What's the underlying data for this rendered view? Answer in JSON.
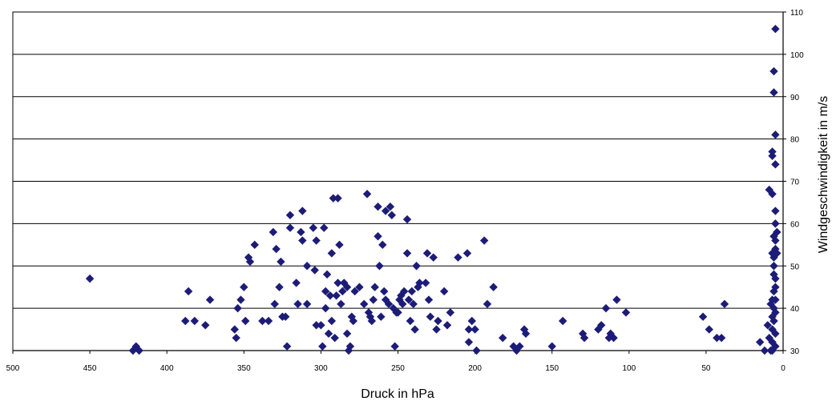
{
  "chart_data": {
    "type": "scatter",
    "title": "",
    "xlabel": "Druck in hPa",
    "ylabel": "Windgeschwindigkeit in m/s",
    "xlim": [
      500,
      0
    ],
    "ylim": [
      30,
      110
    ],
    "x_reversed": true,
    "x_ticks": [
      500,
      450,
      400,
      350,
      300,
      250,
      200,
      150,
      100,
      50,
      0
    ],
    "y_ticks": [
      30,
      40,
      50,
      60,
      70,
      80,
      90,
      100,
      110
    ],
    "grid": "horizontal",
    "legend": "none",
    "marker": "diamond",
    "marker_color": "#1c1c78",
    "points": [
      [
        450,
        47
      ],
      [
        422,
        30
      ],
      [
        420,
        31
      ],
      [
        418,
        30
      ],
      [
        388,
        37
      ],
      [
        386,
        44
      ],
      [
        382,
        37
      ],
      [
        375,
        36
      ],
      [
        372,
        42
      ],
      [
        356,
        35
      ],
      [
        355,
        33
      ],
      [
        354,
        40
      ],
      [
        352,
        42
      ],
      [
        350,
        45
      ],
      [
        349,
        37
      ],
      [
        347,
        52
      ],
      [
        346,
        51
      ],
      [
        343,
        55
      ],
      [
        338,
        37
      ],
      [
        334,
        37
      ],
      [
        331,
        58
      ],
      [
        330,
        41
      ],
      [
        329,
        54
      ],
      [
        327,
        45
      ],
      [
        326,
        51
      ],
      [
        325,
        38
      ],
      [
        323,
        38
      ],
      [
        322,
        31
      ],
      [
        320,
        59
      ],
      [
        320,
        62
      ],
      [
        316,
        46
      ],
      [
        315,
        41
      ],
      [
        313,
        58
      ],
      [
        312,
        56
      ],
      [
        312,
        63
      ],
      [
        309,
        50
      ],
      [
        309,
        41
      ],
      [
        305,
        59
      ],
      [
        304,
        49
      ],
      [
        303,
        56
      ],
      [
        303,
        36
      ],
      [
        300,
        36
      ],
      [
        299,
        31
      ],
      [
        298,
        59
      ],
      [
        297,
        44
      ],
      [
        297,
        40
      ],
      [
        296,
        48
      ],
      [
        295,
        34
      ],
      [
        294,
        43
      ],
      [
        293,
        37
      ],
      [
        293,
        53
      ],
      [
        292,
        66
      ],
      [
        291,
        33
      ],
      [
        290,
        43
      ],
      [
        289,
        66
      ],
      [
        289,
        46
      ],
      [
        288,
        55
      ],
      [
        287,
        41
      ],
      [
        286,
        44
      ],
      [
        285,
        46
      ],
      [
        283,
        45
      ],
      [
        283,
        34
      ],
      [
        282,
        30
      ],
      [
        281,
        31
      ],
      [
        280,
        38
      ],
      [
        279,
        37
      ],
      [
        278,
        44
      ],
      [
        275,
        45
      ],
      [
        272,
        41
      ],
      [
        270,
        67
      ],
      [
        269,
        39
      ],
      [
        268,
        38
      ],
      [
        267,
        37
      ],
      [
        266,
        42
      ],
      [
        265,
        45
      ],
      [
        263,
        64
      ],
      [
        263,
        57
      ],
      [
        262,
        50
      ],
      [
        261,
        38
      ],
      [
        260,
        55
      ],
      [
        259,
        44
      ],
      [
        258,
        42
      ],
      [
        258,
        63
      ],
      [
        256,
        41
      ],
      [
        255,
        64
      ],
      [
        254,
        62
      ],
      [
        253,
        40
      ],
      [
        252,
        31
      ],
      [
        251,
        39
      ],
      [
        250,
        39
      ],
      [
        249,
        42
      ],
      [
        248,
        43
      ],
      [
        247,
        41
      ],
      [
        246,
        44
      ],
      [
        244,
        53
      ],
      [
        244,
        61
      ],
      [
        243,
        42
      ],
      [
        242,
        37
      ],
      [
        241,
        44
      ],
      [
        240,
        41
      ],
      [
        239,
        35
      ],
      [
        238,
        50
      ],
      [
        237,
        45
      ],
      [
        236,
        46
      ],
      [
        232,
        46
      ],
      [
        231,
        53
      ],
      [
        230,
        42
      ],
      [
        229,
        38
      ],
      [
        227,
        52
      ],
      [
        225,
        35
      ],
      [
        224,
        37
      ],
      [
        220,
        44
      ],
      [
        218,
        36
      ],
      [
        216,
        39
      ],
      [
        211,
        52
      ],
      [
        205,
        53
      ],
      [
        204,
        35
      ],
      [
        204,
        32
      ],
      [
        202,
        37
      ],
      [
        200,
        35
      ],
      [
        199,
        30
      ],
      [
        194,
        56
      ],
      [
        192,
        41
      ],
      [
        188,
        45
      ],
      [
        182,
        33
      ],
      [
        175,
        31
      ],
      [
        173,
        30
      ],
      [
        171,
        31
      ],
      [
        168,
        35
      ],
      [
        167,
        34
      ],
      [
        150,
        31
      ],
      [
        143,
        37
      ],
      [
        130,
        34
      ],
      [
        129,
        33
      ],
      [
        120,
        35
      ],
      [
        118,
        36
      ],
      [
        115,
        40
      ],
      [
        113,
        33
      ],
      [
        112,
        34
      ],
      [
        110,
        33
      ],
      [
        108,
        42
      ],
      [
        102,
        39
      ],
      [
        52,
        38
      ],
      [
        48,
        35
      ],
      [
        43,
        33
      ],
      [
        40,
        33
      ],
      [
        38,
        41
      ],
      [
        15,
        32
      ],
      [
        12,
        30
      ],
      [
        10,
        36
      ],
      [
        9,
        68
      ],
      [
        9,
        33
      ],
      [
        8,
        41
      ],
      [
        8,
        30
      ],
      [
        7,
        77
      ],
      [
        7,
        76
      ],
      [
        7,
        67
      ],
      [
        7,
        53
      ],
      [
        7,
        42
      ],
      [
        7,
        38
      ],
      [
        7,
        35
      ],
      [
        7,
        32
      ],
      [
        7,
        30
      ],
      [
        6,
        96
      ],
      [
        6,
        91
      ],
      [
        6,
        57
      ],
      [
        6,
        52
      ],
      [
        6,
        50
      ],
      [
        6,
        48
      ],
      [
        6,
        44
      ],
      [
        6,
        40
      ],
      [
        6,
        37
      ],
      [
        5,
        106
      ],
      [
        5,
        81
      ],
      [
        5,
        74
      ],
      [
        5,
        63
      ],
      [
        5,
        60
      ],
      [
        5,
        56
      ],
      [
        5,
        54
      ],
      [
        5,
        47
      ],
      [
        5,
        45
      ],
      [
        5,
        42
      ],
      [
        5,
        39
      ],
      [
        5,
        34
      ],
      [
        5,
        31
      ],
      [
        4,
        58
      ],
      [
        4,
        53
      ]
    ]
  }
}
